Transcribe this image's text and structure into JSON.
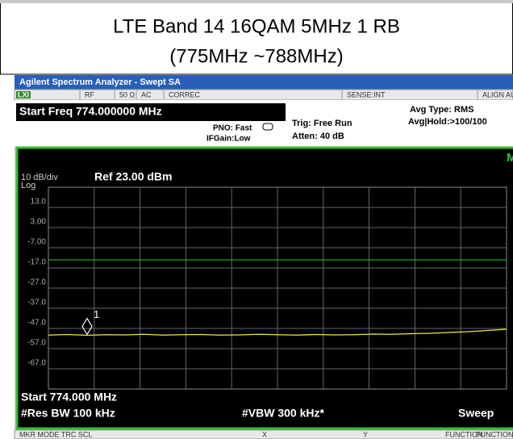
{
  "caption": {
    "line1": "LTE Band 14 16QAM 5MHz 1 RB",
    "line2": "(775MHz ~788MHz)"
  },
  "window_title": "Agilent Spectrum Analyzer - Swept SA",
  "status_bar": {
    "badge": "LXI",
    "items": [
      "RF",
      "50 Ω",
      "AC",
      "CORREC",
      "SENSE:INT",
      "ALIGN AUTO"
    ]
  },
  "settings": {
    "start_freq": "Start Freq 774.000000 MHz",
    "pno": "PNO: Fast",
    "ifgain": "IFGain:Low",
    "trig": "Trig: Free Run",
    "atten": "Atten: 40 dB",
    "avg_type": "Avg Type: RMS",
    "avg_hold": "Avg|Hold:>100/100"
  },
  "chart_data": {
    "type": "line",
    "corner_label": "Mk",
    "scale": "10 dB/div",
    "scale_type": "Log",
    "ref_level": "Ref 23.00 dBm",
    "ylim": [
      -77,
      23
    ],
    "yticks": [
      {
        "value": 13,
        "label": "13.0"
      },
      {
        "value": 3,
        "label": "3.00"
      },
      {
        "value": -7,
        "label": "-7.00"
      },
      {
        "value": -17,
        "label": "-17.0"
      },
      {
        "value": -27,
        "label": "-27.0"
      },
      {
        "value": -37,
        "label": "-37.0"
      },
      {
        "value": -47,
        "label": "-47.0"
      },
      {
        "value": -57,
        "label": "-57.0"
      },
      {
        "value": -67,
        "label": "-67.0"
      }
    ],
    "display_line": -13,
    "trace": {
      "color": "#e8e84a",
      "values": [
        -50.3,
        -50.0,
        -50.4,
        -50.1,
        -50.2,
        -49.9,
        -50.3,
        -50.1,
        -50.0,
        -50.3,
        -50.2,
        -49.9,
        -50.1,
        -50.3,
        -50.0,
        -50.2,
        -50.1,
        -49.8,
        -49.9,
        -49.6,
        -49.4,
        -49.0,
        -48.6,
        -48.0,
        -47.4
      ]
    },
    "marker": {
      "label": "1",
      "value": -50.0
    },
    "start": "Start 774.000 MHz",
    "res_bw": "#Res BW 100 kHz",
    "vbw": "#VBW 300 kHz*",
    "sweep": "Sweep"
  },
  "bottom_bar": [
    "MKR MODE TRC SCL",
    "X",
    "Y",
    "FUNCTION",
    "FUNCTION WIDT"
  ]
}
